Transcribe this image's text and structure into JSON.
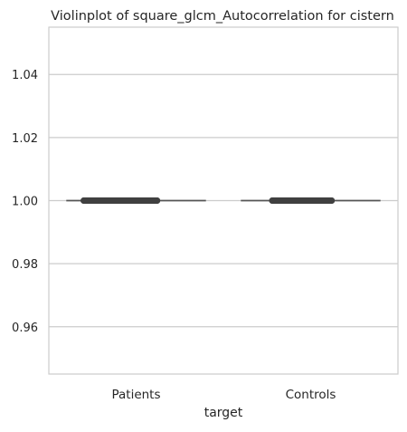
{
  "chart_data": {
    "type": "violin",
    "title": "Violinplot of square_glcm_Autocorrelation for cistern",
    "xlabel": "target",
    "ylabel": "",
    "categories": [
      "Patients",
      "Controls"
    ],
    "ylim": [
      0.945,
      1.055
    ],
    "yticks": [
      0.96,
      0.98,
      1.0,
      1.02,
      1.04
    ],
    "ytick_labels": [
      "0.96",
      "0.98",
      "1.00",
      "1.02",
      "1.04"
    ],
    "grid": true,
    "series": [
      {
        "category": "Patients",
        "values": [
          1.0,
          1.0,
          1.0,
          1.0,
          1.0
        ],
        "median": 1.0,
        "points_x_spread": [
          -0.3,
          0.12
        ]
      },
      {
        "category": "Controls",
        "values": [
          1.0,
          1.0,
          1.0,
          1.0,
          1.0
        ],
        "median": 1.0,
        "points_x_spread": [
          -0.22,
          0.12
        ]
      }
    ],
    "colors": {
      "grid": "#cccccc",
      "frame": "#cccccc",
      "mark": "#404040",
      "text": "#262626"
    }
  }
}
